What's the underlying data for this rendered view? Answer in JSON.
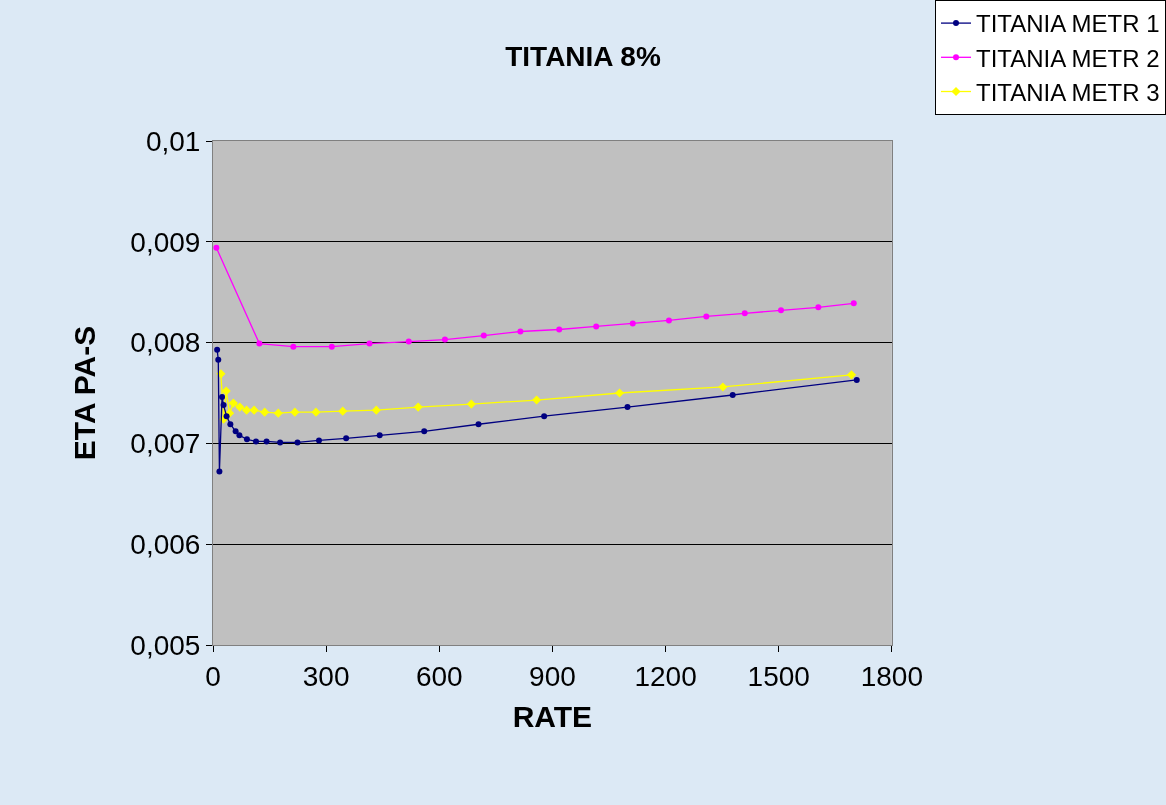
{
  "chart_data": {
    "type": "line",
    "title": "TITANIA 8%",
    "xlabel": "RATE",
    "ylabel": "ETA PA-S",
    "xlim": [
      0,
      1800
    ],
    "xticks": [
      0,
      300,
      600,
      900,
      1200,
      1500,
      1800
    ],
    "ylim": [
      0.005,
      0.01
    ],
    "yticks": [
      {
        "value": 0.005,
        "label": "0,005"
      },
      {
        "value": 0.006,
        "label": "0,006"
      },
      {
        "value": 0.007,
        "label": "0,007"
      },
      {
        "value": 0.008,
        "label": "0,008"
      },
      {
        "value": 0.009,
        "label": "0,009"
      },
      {
        "value": 0.01,
        "label": "0,01"
      }
    ],
    "grid": "y",
    "legend": "top right",
    "line_style": "solid",
    "series": [
      {
        "name": "TITANIA METR 1",
        "color": "#000080",
        "marker": "circle",
        "x": [
          11,
          14,
          17,
          24,
          28,
          36,
          46,
          60,
          70,
          90,
          114,
          142,
          178,
          224,
          281,
          353,
          442,
          560,
          704,
          878,
          1099,
          1378,
          1707
        ],
        "values": [
          0.00793,
          0.00783,
          0.00672,
          0.00746,
          0.00738,
          0.00727,
          0.00719,
          0.00712,
          0.00708,
          0.00704,
          0.00702,
          0.00702,
          0.00701,
          0.00701,
          0.00703,
          0.00705,
          0.00708,
          0.00712,
          0.00719,
          0.00727,
          0.00736,
          0.00748,
          0.00763
        ]
      },
      {
        "name": "TITANIA METR 2",
        "color": "#ff00ff",
        "marker": "circle",
        "x": [
          9,
          123,
          213,
          315,
          415,
          519,
          615,
          718,
          815,
          918,
          1016,
          1113,
          1209,
          1308,
          1410,
          1506,
          1605,
          1699
        ],
        "values": [
          0.00894,
          0.00799,
          0.00796,
          0.00796,
          0.00799,
          0.00801,
          0.00803,
          0.00807,
          0.00811,
          0.00813,
          0.00816,
          0.00819,
          0.00822,
          0.00826,
          0.00829,
          0.00832,
          0.00835,
          0.00839
        ]
      },
      {
        "name": "TITANIA METR 3",
        "color": "#ffff00",
        "marker": "diamond",
        "x": [
          21,
          28,
          35,
          44,
          54,
          71,
          89,
          109,
          137,
          173,
          217,
          273,
          344,
          433,
          544,
          685,
          858,
          1078,
          1352,
          1693
        ],
        "values": [
          0.00769,
          0.00724,
          0.00752,
          0.0073,
          0.0074,
          0.00736,
          0.00733,
          0.00733,
          0.00731,
          0.0073,
          0.00731,
          0.00731,
          0.00732,
          0.00733,
          0.00736,
          0.00739,
          0.00743,
          0.0075,
          0.00756,
          0.00768
        ]
      }
    ]
  }
}
